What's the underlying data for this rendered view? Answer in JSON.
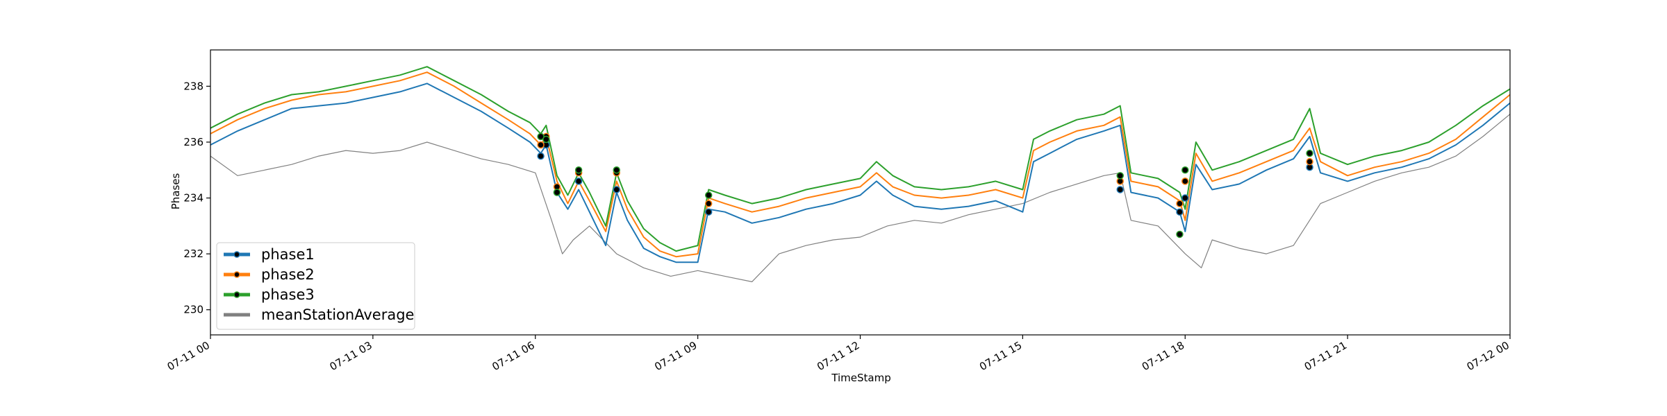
{
  "chart_data": {
    "type": "line",
    "title": "",
    "xlabel": "TimeStamp",
    "ylabel": "Phases",
    "x_ticks": [
      "07-11 00",
      "07-11 03",
      "07-11 06",
      "07-11 09",
      "07-11 12",
      "07-11 15",
      "07-11 18",
      "07-11 21",
      "07-12 00"
    ],
    "y_ticks": [
      230,
      232,
      234,
      236,
      238
    ],
    "xlim": [
      0,
      24
    ],
    "ylim": [
      229.1,
      239.3
    ],
    "grid": false,
    "legend_position": "lower-left",
    "series": [
      {
        "name": "phase1",
        "color": "#1f77b4",
        "x": [
          0,
          0.5,
          1,
          1.5,
          2,
          2.5,
          3,
          3.5,
          4,
          4.5,
          5,
          5.5,
          5.9,
          6.1,
          6.2,
          6.4,
          6.6,
          6.8,
          7,
          7.3,
          7.5,
          7.7,
          8,
          8.3,
          8.6,
          9,
          9.2,
          9.5,
          10,
          10.5,
          11,
          11.5,
          12,
          12.3,
          12.6,
          13,
          13.5,
          14,
          14.5,
          15,
          15.2,
          15.5,
          16,
          16.5,
          16.8,
          17,
          17.5,
          17.9,
          18,
          18.2,
          18.5,
          19,
          19.5,
          20,
          20.3,
          20.5,
          21,
          21.5,
          22,
          22.5,
          23,
          23.5,
          24
        ],
        "values": [
          235.9,
          236.4,
          236.8,
          237.2,
          237.3,
          237.4,
          237.6,
          237.8,
          238.1,
          237.6,
          237.1,
          236.5,
          236.0,
          235.6,
          235.9,
          234.2,
          233.6,
          234.3,
          233.5,
          232.3,
          234.2,
          233.2,
          232.2,
          231.9,
          231.7,
          231.7,
          233.6,
          233.5,
          233.1,
          233.3,
          233.6,
          233.8,
          234.1,
          234.6,
          234.1,
          233.7,
          233.6,
          233.7,
          233.9,
          233.5,
          235.3,
          235.6,
          236.1,
          236.4,
          236.6,
          234.2,
          234.0,
          233.5,
          232.8,
          235.2,
          234.3,
          234.5,
          235.0,
          235.4,
          236.2,
          234.9,
          234.6,
          234.9,
          235.1,
          235.4,
          235.9,
          236.6,
          237.4
        ]
      },
      {
        "name": "phase2",
        "color": "#ff7f0e",
        "x": [
          0,
          0.5,
          1,
          1.5,
          2,
          2.5,
          3,
          3.5,
          4,
          4.5,
          5,
          5.5,
          5.9,
          6.1,
          6.2,
          6.4,
          6.6,
          6.8,
          7,
          7.3,
          7.5,
          7.7,
          8,
          8.3,
          8.6,
          9,
          9.2,
          9.5,
          10,
          10.5,
          11,
          11.5,
          12,
          12.3,
          12.6,
          13,
          13.5,
          14,
          14.5,
          15,
          15.2,
          15.5,
          16,
          16.5,
          16.8,
          17,
          17.5,
          17.9,
          18,
          18.2,
          18.5,
          19,
          19.5,
          20,
          20.3,
          20.5,
          21,
          21.5,
          22,
          22.5,
          23,
          23.5,
          24
        ],
        "values": [
          236.3,
          236.8,
          237.2,
          237.5,
          237.7,
          237.8,
          238.0,
          238.2,
          238.5,
          238.0,
          237.4,
          236.8,
          236.3,
          235.9,
          236.2,
          234.6,
          233.8,
          234.6,
          233.9,
          232.8,
          234.6,
          233.6,
          232.6,
          232.1,
          231.9,
          232.0,
          234.0,
          233.8,
          233.5,
          233.7,
          234.0,
          234.2,
          234.4,
          234.9,
          234.4,
          234.1,
          234.0,
          234.1,
          234.3,
          234.0,
          235.7,
          236.0,
          236.4,
          236.6,
          236.9,
          234.6,
          234.4,
          233.9,
          233.2,
          235.6,
          234.6,
          234.9,
          235.3,
          235.7,
          236.5,
          235.3,
          234.8,
          235.1,
          235.3,
          235.6,
          236.1,
          236.9,
          237.7
        ]
      },
      {
        "name": "phase3",
        "color": "#2ca02c",
        "x": [
          0,
          0.5,
          1,
          1.5,
          2,
          2.5,
          3,
          3.5,
          4,
          4.5,
          5,
          5.5,
          5.9,
          6.1,
          6.2,
          6.4,
          6.6,
          6.8,
          7,
          7.3,
          7.5,
          7.7,
          8,
          8.3,
          8.6,
          9,
          9.2,
          9.5,
          10,
          10.5,
          11,
          11.5,
          12,
          12.3,
          12.6,
          13,
          13.5,
          14,
          14.5,
          15,
          15.2,
          15.5,
          16,
          16.5,
          16.8,
          17,
          17.5,
          17.9,
          18,
          18.2,
          18.5,
          19,
          19.5,
          20,
          20.3,
          20.5,
          21,
          21.5,
          22,
          22.5,
          23,
          23.5,
          24
        ],
        "values": [
          236.5,
          237.0,
          237.4,
          237.7,
          237.8,
          238.0,
          238.2,
          238.4,
          238.7,
          238.2,
          237.7,
          237.1,
          236.7,
          236.3,
          236.6,
          234.8,
          234.1,
          234.9,
          234.2,
          233.0,
          234.9,
          233.9,
          232.9,
          232.4,
          232.1,
          232.3,
          234.3,
          234.1,
          233.8,
          234.0,
          234.3,
          234.5,
          234.7,
          235.3,
          234.8,
          234.4,
          234.3,
          234.4,
          234.6,
          234.3,
          236.1,
          236.4,
          236.8,
          237.0,
          237.3,
          234.9,
          234.7,
          234.2,
          233.6,
          236.0,
          235.0,
          235.3,
          235.7,
          236.1,
          237.2,
          235.6,
          235.2,
          235.5,
          235.7,
          236.0,
          236.6,
          237.3,
          237.9
        ]
      },
      {
        "name": "meanStationAverage",
        "color": "#808080",
        "x": [
          0,
          0.5,
          1,
          1.5,
          2,
          2.5,
          3,
          3.5,
          4,
          4.5,
          5,
          5.5,
          6,
          6.3,
          6.5,
          6.7,
          7,
          7.5,
          8,
          8.5,
          9,
          9.5,
          10,
          10.5,
          11,
          11.5,
          12,
          12.5,
          13,
          13.5,
          14,
          14.5,
          15,
          15.5,
          16,
          16.5,
          16.8,
          17,
          17.5,
          18,
          18.3,
          18.5,
          19,
          19.5,
          20,
          20.5,
          21,
          21.5,
          22,
          22.5,
          23,
          23.5,
          24
        ],
        "values": [
          235.5,
          234.8,
          235.0,
          235.2,
          235.5,
          235.7,
          235.6,
          235.7,
          236.0,
          235.7,
          235.4,
          235.2,
          234.9,
          233.2,
          232.0,
          232.5,
          233.0,
          232.0,
          231.5,
          231.2,
          231.4,
          231.2,
          231.0,
          232.0,
          232.3,
          232.5,
          232.6,
          233.0,
          233.2,
          233.1,
          233.4,
          233.6,
          233.8,
          234.2,
          234.5,
          234.8,
          234.9,
          233.2,
          233.0,
          232.0,
          231.5,
          232.5,
          232.2,
          232.0,
          232.3,
          233.8,
          234.2,
          234.6,
          234.9,
          235.1,
          235.5,
          236.2,
          237.0
        ]
      }
    ],
    "markers": {
      "color": "#000000",
      "x": [
        6.1,
        6.2,
        6.4,
        6.8,
        7.5,
        9.2,
        16.8,
        17.9,
        18.0,
        20.3
      ],
      "phase1": [
        235.5,
        235.9,
        234.2,
        234.6,
        234.3,
        233.5,
        234.3,
        233.5,
        234.0,
        235.1
      ],
      "phase2": [
        235.9,
        236.2,
        234.4,
        234.9,
        234.9,
        233.8,
        234.6,
        233.8,
        234.6,
        235.3
      ],
      "phase3": [
        236.2,
        236.1,
        234.2,
        235.0,
        235.0,
        234.1,
        234.8,
        232.7,
        235.0,
        235.6
      ]
    }
  }
}
